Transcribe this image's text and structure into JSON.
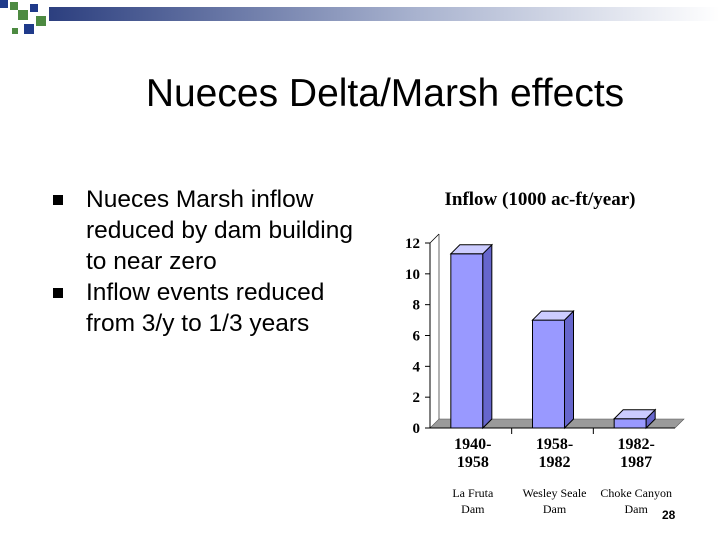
{
  "slide": {
    "title": "Nueces Delta/Marsh effects",
    "page_number": "28",
    "bullets": [
      "Nueces Marsh inflow reduced by dam building to near zero",
      "Inflow events reduced from 3/y to 1/3 years"
    ]
  },
  "colors": {
    "bar_face": "#9999ff",
    "bar_side": "#6666cc",
    "bar_top": "#ccccff",
    "decor_green": "#4d8a41",
    "decor_blue": "#1f3a8a"
  },
  "chart_data": {
    "type": "bar",
    "title": "Inflow (1000 ac-ft/year)",
    "categories": [
      "1940-1958",
      "1958-1982",
      "1982-1987"
    ],
    "category_lines": [
      [
        "1940-",
        "1958"
      ],
      [
        "1958-",
        "1982"
      ],
      [
        "1982-",
        "1987"
      ]
    ],
    "dam_labels": [
      [
        "La Fruta",
        "Dam"
      ],
      [
        "Wesley Seale",
        "Dam"
      ],
      [
        "Choke Canyon",
        "Dam"
      ]
    ],
    "values": [
      11.3,
      7.0,
      0.6
    ],
    "ylim": [
      0,
      12
    ],
    "yticks": [
      "0",
      "2",
      "4",
      "6",
      "8",
      "10",
      "12"
    ],
    "grid": false,
    "style": "3d"
  }
}
